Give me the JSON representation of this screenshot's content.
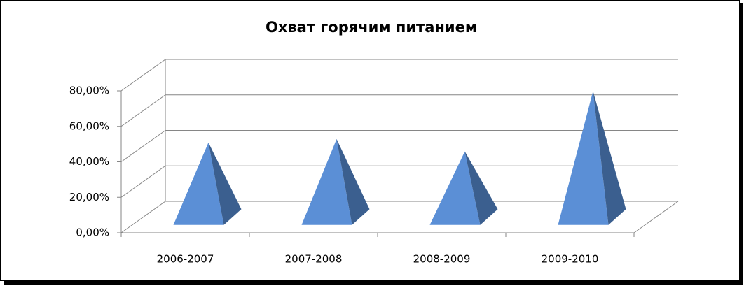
{
  "chart_data": {
    "type": "pyramid",
    "title": "Охват горячим питанием",
    "categories": [
      "2006-2007",
      "2007-2008",
      "2008-2009",
      "2009-2010"
    ],
    "values": [
      42,
      44,
      37,
      71
    ],
    "color": "#5b8fd6",
    "side_color": "#3b5f8f",
    "ylim": [
      0,
      80
    ],
    "yticks": [
      {
        "value": 0,
        "label": "0,00%"
      },
      {
        "value": 20,
        "label": "20,00%"
      },
      {
        "value": 40,
        "label": "40,00%"
      },
      {
        "value": 60,
        "label": "60,00%"
      },
      {
        "value": 80,
        "label": "80,00%"
      }
    ],
    "grid": true
  }
}
